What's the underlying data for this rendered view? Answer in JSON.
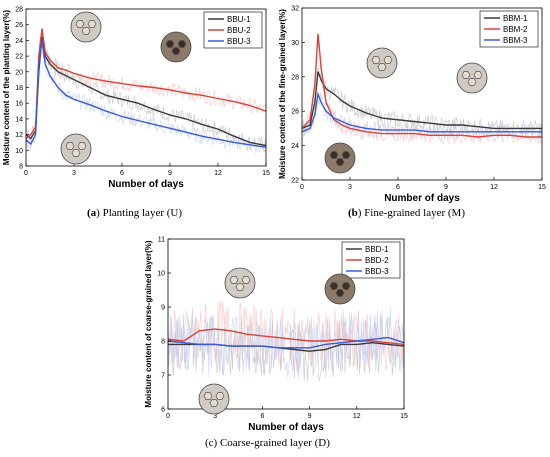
{
  "colors": {
    "series1": "#3a3a3a",
    "series2": "#d8433a",
    "series3": "#3a5ad8",
    "noise1": "#9a9a9a",
    "noise2": "#f2a0a0",
    "noise3": "#a0b0ee"
  },
  "captions": {
    "a_letter": "(a",
    "a_rest": ") Planting layer (U)",
    "b_letter": "(b",
    "b_rest": ") Fine-grained layer (M)",
    "c_text": "(c) Coarse-grained layer (D)"
  },
  "chart_data": [
    {
      "id": "a",
      "type": "line",
      "xlabel": "Number of days",
      "ylabel": "Moisture content of the planting layer(%)",
      "xlim": [
        0,
        15
      ],
      "ylim": [
        8,
        28
      ],
      "xticks": [
        "0",
        "3",
        "6",
        "9",
        "12",
        "15"
      ],
      "yticks": [
        "8",
        "10",
        "12",
        "14",
        "16",
        "18",
        "20",
        "22",
        "24",
        "26",
        "28"
      ],
      "legend": "top-right",
      "x": [
        0,
        0.3,
        0.6,
        0.8,
        1.0,
        1.2,
        1.5,
        2,
        2.5,
        3,
        4,
        5,
        6,
        7,
        8,
        9,
        10,
        11,
        12,
        13,
        14,
        15
      ],
      "series": [
        {
          "name": "BBU-1",
          "values": [
            12.0,
            11.5,
            12.5,
            20.0,
            24.5,
            22.0,
            21.0,
            20.0,
            19.5,
            19.0,
            18.0,
            17.0,
            16.5,
            16.0,
            15.2,
            14.5,
            14.0,
            13.3,
            12.7,
            11.8,
            11.0,
            10.6
          ]
        },
        {
          "name": "BBU-2",
          "values": [
            11.5,
            12.0,
            13.0,
            22.0,
            25.5,
            22.5,
            21.5,
            20.5,
            20.2,
            19.8,
            19.2,
            18.8,
            18.5,
            18.2,
            18.0,
            17.7,
            17.3,
            17.0,
            16.6,
            16.2,
            15.7,
            15.0
          ]
        },
        {
          "name": "BBU-3",
          "values": [
            11.3,
            10.8,
            12.0,
            21.0,
            24.0,
            21.0,
            19.5,
            18.0,
            17.0,
            16.5,
            15.8,
            15.0,
            14.3,
            13.8,
            13.3,
            12.8,
            12.3,
            11.8,
            11.4,
            11.0,
            10.7,
            10.4
          ]
        }
      ]
    },
    {
      "id": "b",
      "type": "line",
      "xlabel": "Number of days",
      "ylabel": "Moisture content of the fine-grained layer(%)",
      "xlim": [
        0,
        15
      ],
      "ylim": [
        22,
        32
      ],
      "xticks": [
        "0",
        "3",
        "6",
        "9",
        "12",
        "15"
      ],
      "yticks": [
        "22",
        "24",
        "26",
        "28",
        "30",
        "32"
      ],
      "legend": "top-right",
      "x": [
        0,
        0.5,
        0.8,
        1.0,
        1.2,
        1.5,
        2,
        2.5,
        3,
        4,
        5,
        6,
        7,
        8,
        9,
        10,
        11,
        12,
        13,
        14,
        15
      ],
      "series": [
        {
          "name": "BBM-1",
          "values": [
            25.0,
            25.2,
            26.5,
            28.3,
            27.8,
            27.3,
            27.0,
            26.6,
            26.3,
            25.9,
            25.6,
            25.5,
            25.4,
            25.3,
            25.2,
            25.2,
            25.1,
            25.0,
            25.0,
            25.0,
            25.0
          ]
        },
        {
          "name": "BBM-2",
          "values": [
            25.0,
            25.5,
            27.5,
            30.5,
            28.5,
            26.5,
            25.5,
            25.2,
            25.0,
            24.8,
            24.7,
            24.7,
            24.7,
            24.6,
            24.6,
            24.6,
            24.5,
            24.6,
            24.6,
            24.5,
            24.5
          ]
        },
        {
          "name": "BBM-3",
          "values": [
            24.8,
            25.0,
            25.8,
            27.0,
            26.5,
            26.0,
            25.6,
            25.4,
            25.2,
            25.0,
            24.9,
            24.9,
            24.9,
            24.8,
            24.8,
            24.8,
            24.8,
            24.8,
            24.8,
            24.8,
            24.8
          ]
        }
      ]
    },
    {
      "id": "c",
      "type": "line",
      "xlabel": "Number of days",
      "ylabel": "Moisture content of coarse-grained layer(%)",
      "xlim": [
        0,
        15
      ],
      "ylim": [
        6,
        11
      ],
      "xticks": [
        "0",
        "3",
        "6",
        "9",
        "12",
        "15"
      ],
      "yticks": [
        "6",
        "7",
        "8",
        "9",
        "10",
        "11"
      ],
      "legend": "top-right",
      "x": [
        0,
        1,
        2,
        3,
        4,
        5,
        6,
        7,
        8,
        9,
        10,
        11,
        12,
        13,
        14,
        15
      ],
      "series": [
        {
          "name": "BBD-1",
          "values": [
            7.9,
            7.9,
            7.9,
            7.9,
            7.85,
            7.85,
            7.85,
            7.8,
            7.75,
            7.7,
            7.75,
            7.9,
            7.9,
            7.95,
            7.9,
            7.85
          ]
        },
        {
          "name": "BBD-2",
          "values": [
            8.05,
            8.0,
            8.3,
            8.35,
            8.3,
            8.2,
            8.15,
            8.1,
            8.05,
            8.0,
            8.0,
            8.05,
            8.0,
            8.0,
            7.95,
            7.9
          ]
        },
        {
          "name": "BBD-3",
          "values": [
            8.0,
            7.95,
            7.9,
            7.9,
            7.85,
            7.85,
            7.85,
            7.8,
            7.8,
            7.8,
            7.9,
            7.95,
            8.0,
            8.05,
            8.1,
            7.95
          ]
        }
      ]
    }
  ]
}
